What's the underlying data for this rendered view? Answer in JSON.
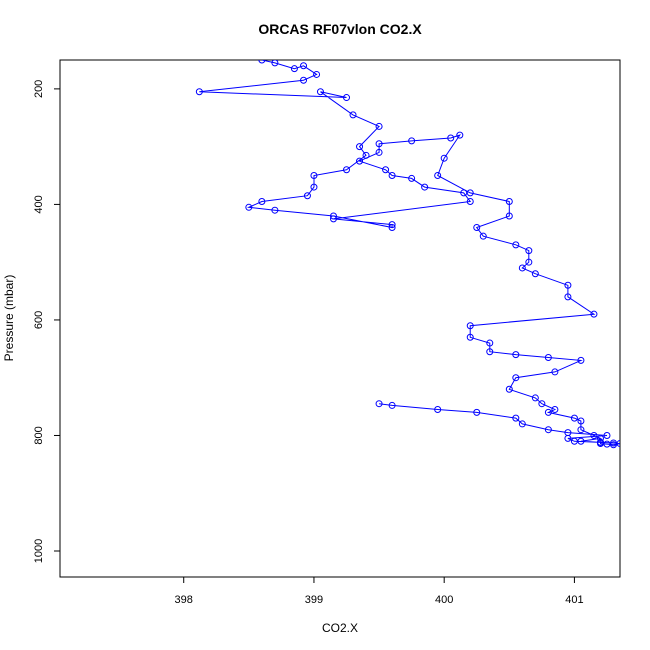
{
  "chart_data": {
    "type": "line",
    "title": "ORCAS RF07vlon CO2.X",
    "xlabel": "CO2.X",
    "ylabel": "Pressure (mbar)",
    "xlim": [
      397.05,
      401.35
    ],
    "ylim": [
      1045,
      150
    ],
    "y_reversed": true,
    "grid": false,
    "legend": "none",
    "x_ticks": [
      398,
      399,
      400,
      401
    ],
    "x_tick_labels": [
      "398",
      "399",
      "400",
      "401"
    ],
    "y_ticks": [
      200,
      400,
      600,
      800,
      1000
    ],
    "y_tick_labels": [
      "200",
      "400",
      "600",
      "800",
      "1000"
    ],
    "series": [
      {
        "color": "#0000ff",
        "marker": "open-circle",
        "x": [
          398.6,
          398.7,
          398.85,
          398.92,
          399.02,
          398.92,
          398.12,
          399.25,
          399.05,
          399.3,
          399.5,
          399.35,
          399.4,
          399.25,
          399.0,
          399.0,
          398.95,
          398.6,
          398.5,
          398.7,
          399.15,
          399.6,
          399.6,
          399.15,
          400.2,
          400.15,
          399.85,
          399.75,
          399.6,
          399.55,
          399.35,
          399.5,
          399.5,
          399.75,
          400.05,
          400.12,
          400.0,
          399.95,
          400.2,
          400.5,
          400.5,
          400.25,
          400.3,
          400.55,
          400.65,
          400.65,
          400.6,
          400.7,
          400.95,
          400.95,
          401.15,
          400.2,
          400.2,
          400.35,
          400.35,
          400.55,
          400.8,
          401.05,
          400.85,
          400.55,
          400.5,
          400.7,
          400.75,
          400.85,
          400.8,
          401.0,
          401.05,
          401.05,
          401.15,
          401.2,
          401.05,
          401.2,
          401.2,
          401.25,
          401.3,
          401.35,
          401.3,
          401.2,
          401.0,
          400.95,
          401.25,
          400.95,
          400.8,
          400.6,
          400.55,
          400.25,
          399.95,
          399.6,
          399.5
        ],
        "y": [
          150,
          155,
          165,
          160,
          175,
          185,
          205,
          215,
          205,
          245,
          265,
          300,
          315,
          340,
          350,
          370,
          385,
          395,
          405,
          410,
          420,
          440,
          435,
          425,
          395,
          380,
          370,
          355,
          350,
          340,
          325,
          310,
          295,
          290,
          285,
          280,
          320,
          350,
          380,
          395,
          420,
          440,
          455,
          470,
          480,
          500,
          510,
          520,
          540,
          560,
          590,
          610,
          630,
          640,
          655,
          660,
          665,
          670,
          690,
          700,
          720,
          735,
          745,
          755,
          760,
          770,
          775,
          790,
          800,
          805,
          810,
          812,
          814,
          815,
          816,
          814,
          813,
          812,
          810,
          805,
          800,
          795,
          790,
          780,
          770,
          760,
          755,
          748,
          745
        ]
      }
    ]
  }
}
